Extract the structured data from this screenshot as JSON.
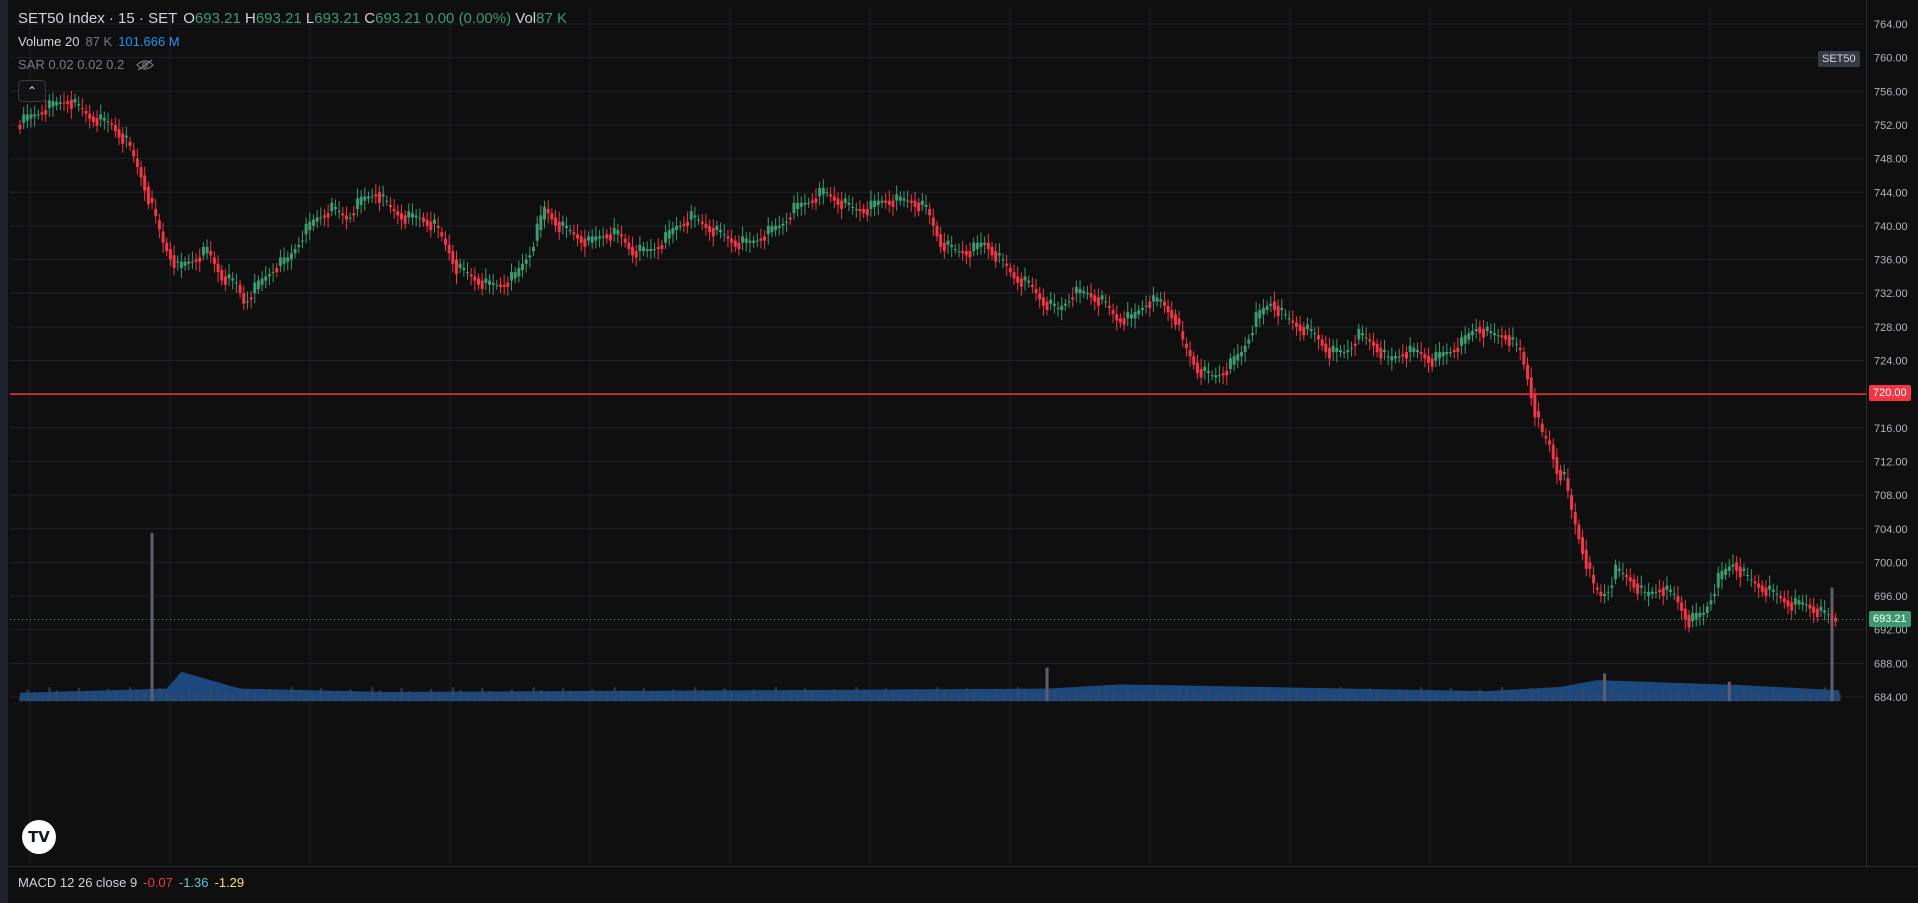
{
  "header": {
    "symbol": "SET50 Index · 15 · SET",
    "ohlc": {
      "o_label": "O",
      "o": "693.21",
      "h_label": "H",
      "h": "693.21",
      "l_label": "L",
      "l": "693.21",
      "c_label": "C",
      "c": "693.21",
      "change": "0.00 (0.00%)",
      "vol_label": "Vol",
      "vol": "87 K"
    }
  },
  "indicators": {
    "volume": {
      "name": "Volume 20",
      "value": "87 K",
      "ma": "101.666 M"
    },
    "sar": {
      "name": "SAR 0.02 0.02 0.2"
    },
    "macd": {
      "name": "MACD 12 26 close 9",
      "v1": "-0.07",
      "v2": "-1.36",
      "v3": "-1.29"
    }
  },
  "badges": {
    "symbol": "SET50",
    "level": "720.00",
    "last": "693.21"
  },
  "colors": {
    "up": "#3d9970",
    "down": "#f23645",
    "bg": "#0f0f0f",
    "grid": "#1f222b",
    "axis_text": "#b2b5be",
    "vol_ma": "#1f4f8a"
  },
  "icons": {
    "collapse": "chevron-up-icon",
    "hide": "eye-off-icon",
    "logo": "tradingview-logo"
  },
  "chart_data": {
    "type": "candlestick",
    "title": "SET50 Index · 15 · SET",
    "y_axis_ticks": [
      "764.00",
      "760.00",
      "756.00",
      "752.00",
      "748.00",
      "744.00",
      "740.00",
      "736.00",
      "732.00",
      "728.00",
      "724.00",
      "720.00",
      "716.00",
      "712.00",
      "708.00",
      "704.00",
      "700.00",
      "696.00",
      "692.00",
      "688.00",
      "684.00"
    ],
    "ylim": [
      683,
      765
    ],
    "horizontal_line": 720.0,
    "last_price": 693.21,
    "grid": true,
    "close_path": [
      [
        0,
        752
      ],
      [
        8,
        754
      ],
      [
        14,
        755
      ],
      [
        20,
        753
      ],
      [
        26,
        752
      ],
      [
        30,
        750
      ],
      [
        34,
        746
      ],
      [
        37,
        742
      ],
      [
        40,
        738
      ],
      [
        44,
        735
      ],
      [
        48,
        736
      ],
      [
        52,
        737
      ],
      [
        56,
        734
      ],
      [
        60,
        733
      ],
      [
        62,
        731
      ],
      [
        66,
        733
      ],
      [
        70,
        735
      ],
      [
        74,
        736
      ],
      [
        78,
        739
      ],
      [
        82,
        741
      ],
      [
        86,
        742
      ],
      [
        90,
        741
      ],
      [
        94,
        743
      ],
      [
        98,
        744
      ],
      [
        102,
        742
      ],
      [
        106,
        741
      ],
      [
        110,
        741
      ],
      [
        114,
        740
      ],
      [
        118,
        737
      ],
      [
        120,
        735
      ],
      [
        124,
        734
      ],
      [
        128,
        733
      ],
      [
        132,
        733
      ],
      [
        136,
        734
      ],
      [
        140,
        737
      ],
      [
        144,
        742
      ],
      [
        148,
        740
      ],
      [
        152,
        739
      ],
      [
        156,
        738
      ],
      [
        160,
        739
      ],
      [
        164,
        739
      ],
      [
        168,
        737
      ],
      [
        172,
        737
      ],
      [
        176,
        738
      ],
      [
        180,
        740
      ],
      [
        184,
        741
      ],
      [
        188,
        740
      ],
      [
        192,
        739
      ],
      [
        196,
        738
      ],
      [
        200,
        738
      ],
      [
        204,
        739
      ],
      [
        208,
        740
      ],
      [
        212,
        742
      ],
      [
        216,
        743
      ],
      [
        220,
        744
      ],
      [
        224,
        743
      ],
      [
        228,
        742
      ],
      [
        232,
        742
      ],
      [
        236,
        743
      ],
      [
        240,
        743
      ],
      [
        244,
        743
      ],
      [
        248,
        742
      ],
      [
        252,
        738
      ],
      [
        256,
        737
      ],
      [
        260,
        737
      ],
      [
        264,
        738
      ],
      [
        268,
        736
      ],
      [
        272,
        734
      ],
      [
        276,
        733
      ],
      [
        280,
        731
      ],
      [
        284,
        730
      ],
      [
        288,
        732
      ],
      [
        292,
        732
      ],
      [
        296,
        731
      ],
      [
        300,
        729
      ],
      [
        304,
        729
      ],
      [
        308,
        731
      ],
      [
        312,
        731
      ],
      [
        316,
        729
      ],
      [
        318,
        726
      ],
      [
        322,
        723
      ],
      [
        326,
        722
      ],
      [
        330,
        723
      ],
      [
        334,
        725
      ],
      [
        338,
        729
      ],
      [
        342,
        731
      ],
      [
        346,
        729
      ],
      [
        350,
        728
      ],
      [
        354,
        727
      ],
      [
        358,
        725
      ],
      [
        362,
        725
      ],
      [
        366,
        727
      ],
      [
        370,
        726
      ],
      [
        374,
        724
      ],
      [
        378,
        725
      ],
      [
        382,
        725
      ],
      [
        386,
        724
      ],
      [
        390,
        725
      ],
      [
        394,
        726
      ],
      [
        398,
        728
      ],
      [
        402,
        727
      ],
      [
        406,
        727
      ],
      [
        410,
        725
      ],
      [
        412,
        722
      ],
      [
        414,
        718
      ],
      [
        416,
        715
      ],
      [
        418,
        714
      ],
      [
        420,
        711
      ],
      [
        422,
        710
      ],
      [
        424,
        706
      ],
      [
        426,
        703
      ],
      [
        428,
        700
      ],
      [
        430,
        697
      ],
      [
        432,
        696
      ],
      [
        434,
        697
      ],
      [
        436,
        699
      ],
      [
        440,
        698
      ],
      [
        444,
        696
      ],
      [
        448,
        697
      ],
      [
        452,
        696
      ],
      [
        456,
        693
      ],
      [
        460,
        694
      ],
      [
        464,
        698
      ],
      [
        468,
        700
      ],
      [
        472,
        698
      ],
      [
        476,
        697
      ],
      [
        480,
        696
      ],
      [
        484,
        695
      ],
      [
        488,
        695
      ],
      [
        492,
        694
      ],
      [
        496,
        693.21
      ]
    ],
    "volume_path": [
      [
        0,
        684.5
      ],
      [
        40,
        685
      ],
      [
        44,
        687
      ],
      [
        60,
        685
      ],
      [
        100,
        684.6
      ],
      [
        200,
        684.8
      ],
      [
        280,
        685
      ],
      [
        300,
        685.5
      ],
      [
        400,
        684.7
      ],
      [
        420,
        685.2
      ],
      [
        430,
        686
      ],
      [
        470,
        685.4
      ],
      [
        496,
        684.8
      ]
    ],
    "volume_spikes": [
      [
        36,
        703.5
      ],
      [
        280,
        687.5
      ],
      [
        432,
        686.8
      ],
      [
        466,
        685.8
      ],
      [
        494,
        697
      ]
    ]
  }
}
